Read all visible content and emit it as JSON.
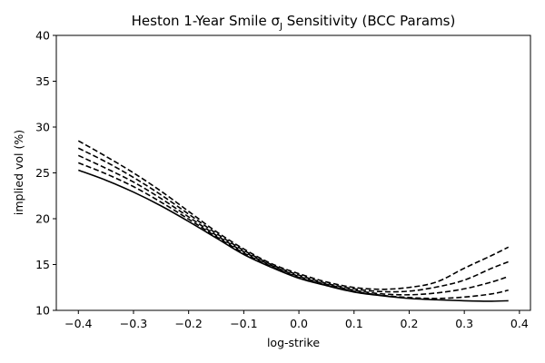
{
  "chart_data": {
    "type": "line",
    "title": "Heston 1-Year Smile σ",
    "title_sub": "J",
    "title_suffix": " Sensitivity (BCC Params)",
    "xlabel": "log-strike",
    "ylabel": "implied vol (%)",
    "xlim": [
      -0.44,
      0.42
    ],
    "ylim": [
      10,
      40
    ],
    "xticks": [
      -0.4,
      -0.3,
      -0.2,
      -0.1,
      0.0,
      0.1,
      0.2,
      0.3,
      0.4
    ],
    "xtick_labels": [
      "−0.4",
      "−0.3",
      "−0.2",
      "−0.1",
      "0.0",
      "0.1",
      "0.2",
      "0.3",
      "0.4"
    ],
    "yticks": [
      10,
      15,
      20,
      25,
      30,
      35,
      40
    ],
    "ytick_labels": [
      "10",
      "15",
      "20",
      "25",
      "30",
      "35",
      "40"
    ],
    "grid": false,
    "legend": "none",
    "x": [
      -0.4,
      -0.35,
      -0.3,
      -0.25,
      -0.2,
      -0.15,
      -0.1,
      -0.05,
      0.0,
      0.05,
      0.1,
      0.15,
      0.2,
      0.25,
      0.3,
      0.35,
      0.38
    ],
    "series": [
      {
        "style": "solid",
        "color": "#000000",
        "values": [
          25.3,
          24.2,
          22.9,
          21.4,
          19.7,
          17.9,
          16.1,
          14.7,
          13.5,
          12.7,
          12.0,
          11.6,
          11.3,
          11.15,
          11.05,
          11.0,
          11.05
        ]
      },
      {
        "style": "dashed",
        "color": "#000000",
        "values": [
          26.1,
          24.9,
          23.5,
          21.8,
          19.95,
          18.05,
          16.25,
          14.8,
          13.6,
          12.75,
          12.1,
          11.65,
          11.4,
          11.3,
          11.45,
          11.8,
          12.2
        ]
      },
      {
        "style": "dashed",
        "color": "#000000",
        "values": [
          26.9,
          25.5,
          24.0,
          22.2,
          20.2,
          18.2,
          16.4,
          14.9,
          13.7,
          12.85,
          12.2,
          11.8,
          11.7,
          11.9,
          12.35,
          13.1,
          13.7
        ]
      },
      {
        "style": "dashed",
        "color": "#000000",
        "values": [
          27.7,
          26.2,
          24.5,
          22.6,
          20.5,
          18.4,
          16.55,
          15.0,
          13.85,
          12.95,
          12.35,
          12.05,
          12.1,
          12.55,
          13.3,
          14.6,
          15.3
        ]
      },
      {
        "style": "dashed",
        "color": "#000000",
        "values": [
          28.5,
          26.8,
          25.0,
          23.0,
          20.8,
          18.6,
          16.7,
          15.1,
          14.0,
          13.1,
          12.5,
          12.3,
          12.5,
          13.1,
          14.6,
          16.0,
          16.9
        ]
      }
    ]
  }
}
